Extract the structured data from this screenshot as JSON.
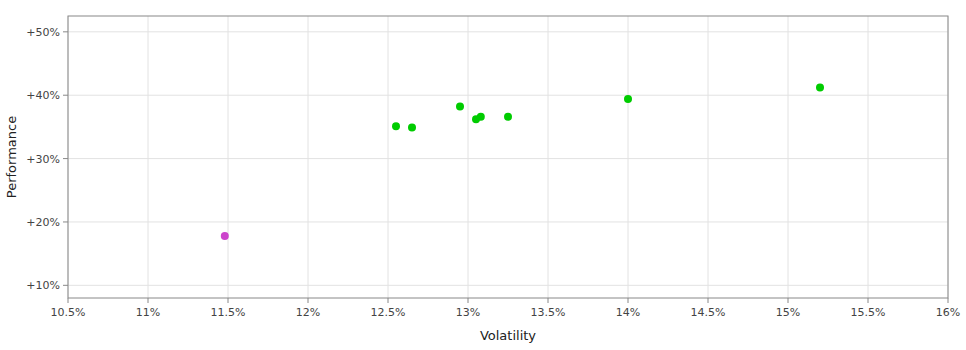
{
  "chart_data": {
    "type": "scatter",
    "xlabel": "Volatility",
    "ylabel": "Performance",
    "xlim": [
      0.105,
      0.16
    ],
    "ylim": [
      0.08,
      0.525
    ],
    "xticks": [
      {
        "value": 0.105,
        "label": "10.5%"
      },
      {
        "value": 0.11,
        "label": "11%"
      },
      {
        "value": 0.115,
        "label": "11.5%"
      },
      {
        "value": 0.12,
        "label": "12%"
      },
      {
        "value": 0.125,
        "label": "12.5%"
      },
      {
        "value": 0.13,
        "label": "13%"
      },
      {
        "value": 0.135,
        "label": "13.5%"
      },
      {
        "value": 0.14,
        "label": "14%"
      },
      {
        "value": 0.145,
        "label": "14.5%"
      },
      {
        "value": 0.15,
        "label": "15%"
      },
      {
        "value": 0.155,
        "label": "15.5%"
      },
      {
        "value": 0.16,
        "label": "16%"
      }
    ],
    "yticks": [
      {
        "value": 0.1,
        "label": "+10%"
      },
      {
        "value": 0.2,
        "label": "+20%"
      },
      {
        "value": 0.3,
        "label": "+30%"
      },
      {
        "value": 0.4,
        "label": "+40%"
      },
      {
        "value": 0.5,
        "label": "+50%"
      }
    ],
    "grid": true,
    "series": [
      {
        "color": "#00cc00",
        "x": [
          0.1255,
          0.1265,
          0.1295,
          0.1305,
          0.1308,
          0.1325,
          0.14,
          0.152
        ],
        "values": [
          0.351,
          0.349,
          0.382,
          0.362,
          0.366,
          0.366,
          0.394,
          0.412
        ]
      },
      {
        "color": "#cc44cc",
        "x": [
          0.1148
        ],
        "values": [
          0.178
        ]
      }
    ]
  }
}
